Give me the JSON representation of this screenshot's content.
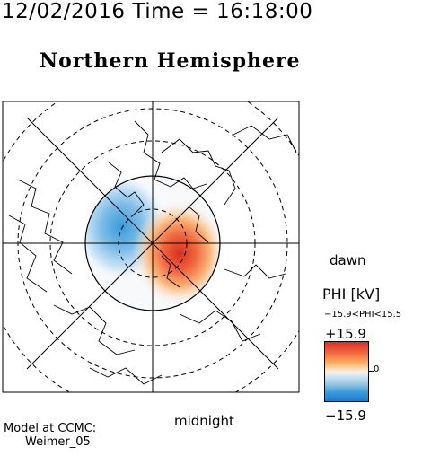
{
  "header": {
    "datetime": "12/02/2016 Time = 16:18:00"
  },
  "map": {
    "title": "Northern Hemisphere",
    "label_dawn": "dawn",
    "label_midnight": "midnight"
  },
  "colorbar": {
    "title": "PHI [kV]",
    "range_text": "−15.9<PHI<15.5",
    "max_label": "+15.9",
    "min_label": "−15.9",
    "zero_label": "0",
    "colors": {
      "max": "#d73027",
      "mid": "#fef0d9",
      "min": "#1f78d1"
    }
  },
  "model": {
    "label": "Model at CCMC:",
    "name": "Weimer_05"
  }
}
